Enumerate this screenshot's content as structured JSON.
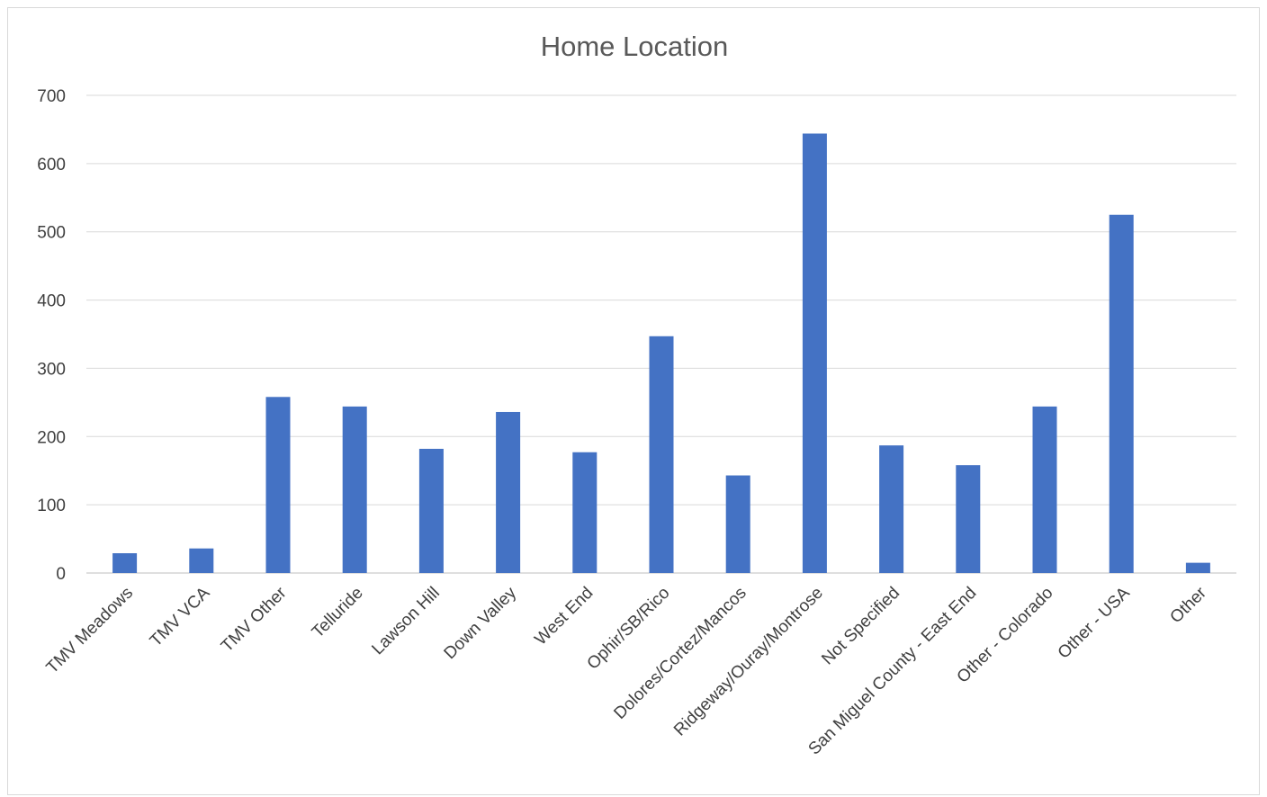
{
  "chart_data": {
    "type": "bar",
    "title": "Home Location",
    "xlabel": "",
    "ylabel": "",
    "ylim": [
      0,
      700
    ],
    "yticks": [
      0,
      100,
      200,
      300,
      400,
      500,
      600,
      700
    ],
    "grid": true,
    "legend": "none",
    "bar_color": "#4472c4",
    "categories": [
      "TMV Meadows",
      "TMV VCA",
      "TMV Other",
      "Telluride",
      "Lawson Hill",
      "Down Valley",
      "West End",
      "Ophir/SB/Rico",
      "Dolores/Cortez/Mancos",
      "Ridgeway/Ouray/Montrose",
      "Not Specified",
      "San Miguel County - East End",
      "Other - Colorado",
      "Other - USA",
      "Other"
    ],
    "values": [
      29,
      36,
      258,
      244,
      182,
      236,
      177,
      347,
      143,
      644,
      187,
      158,
      244,
      525,
      15
    ]
  }
}
